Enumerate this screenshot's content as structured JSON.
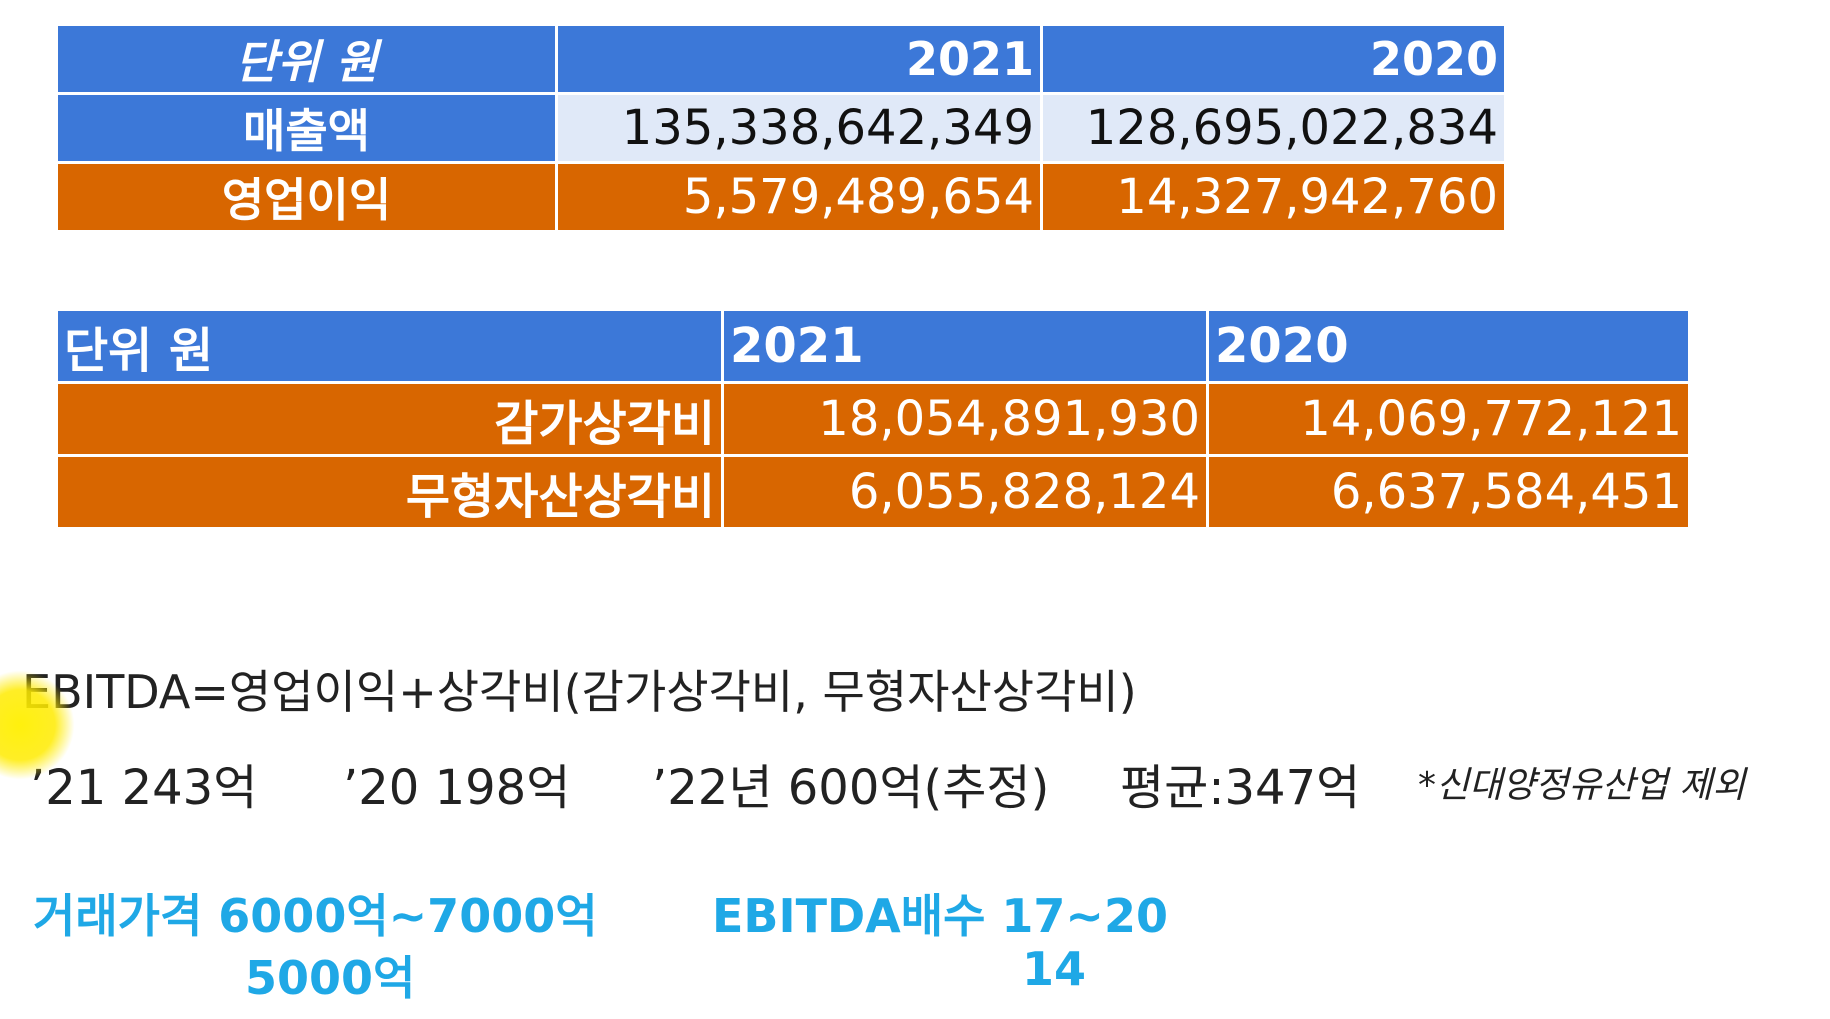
{
  "table1": {
    "header": {
      "unit": "단위 원",
      "year1": "2021",
      "year2": "2020"
    },
    "rows": [
      {
        "label": "매출액",
        "v2021": "135,338,642,349",
        "v2020": "128,695,022,834"
      },
      {
        "label": "영업이익",
        "v2021": "5,579,489,654",
        "v2020": "14,327,942,760"
      }
    ]
  },
  "table2": {
    "header": {
      "unit": "단위 원",
      "year1": "2021",
      "year2": "2020"
    },
    "rows": [
      {
        "label": "감가상각비",
        "v2021": "18,054,891,930",
        "v2020": "14,069,772,121"
      },
      {
        "label": "무형자산상각비",
        "v2021": "6,055,828,124",
        "v2020": "6,637,584,451"
      }
    ]
  },
  "formula": "EBITDA=영업이익+상각비(감가상각비, 무형자산상각비)",
  "ebitda_line": {
    "y21": "’21   243억",
    "y20": "’20   198억",
    "y22": "’22년 600억(추정)",
    "avg": "평균:347억",
    "note": "*신대양정유산업 제외"
  },
  "deal": {
    "price_label": "거래가격 6000억~7000억",
    "price_alt": "5000억",
    "multiple_label": "EBITDA배수 17~20",
    "multiple_alt": "14"
  },
  "colors": {
    "blue_header": "#3c78d8",
    "orange": "#d86600",
    "light_blue": "#e0e9f8",
    "highlight_text": "#1fa8e6"
  }
}
